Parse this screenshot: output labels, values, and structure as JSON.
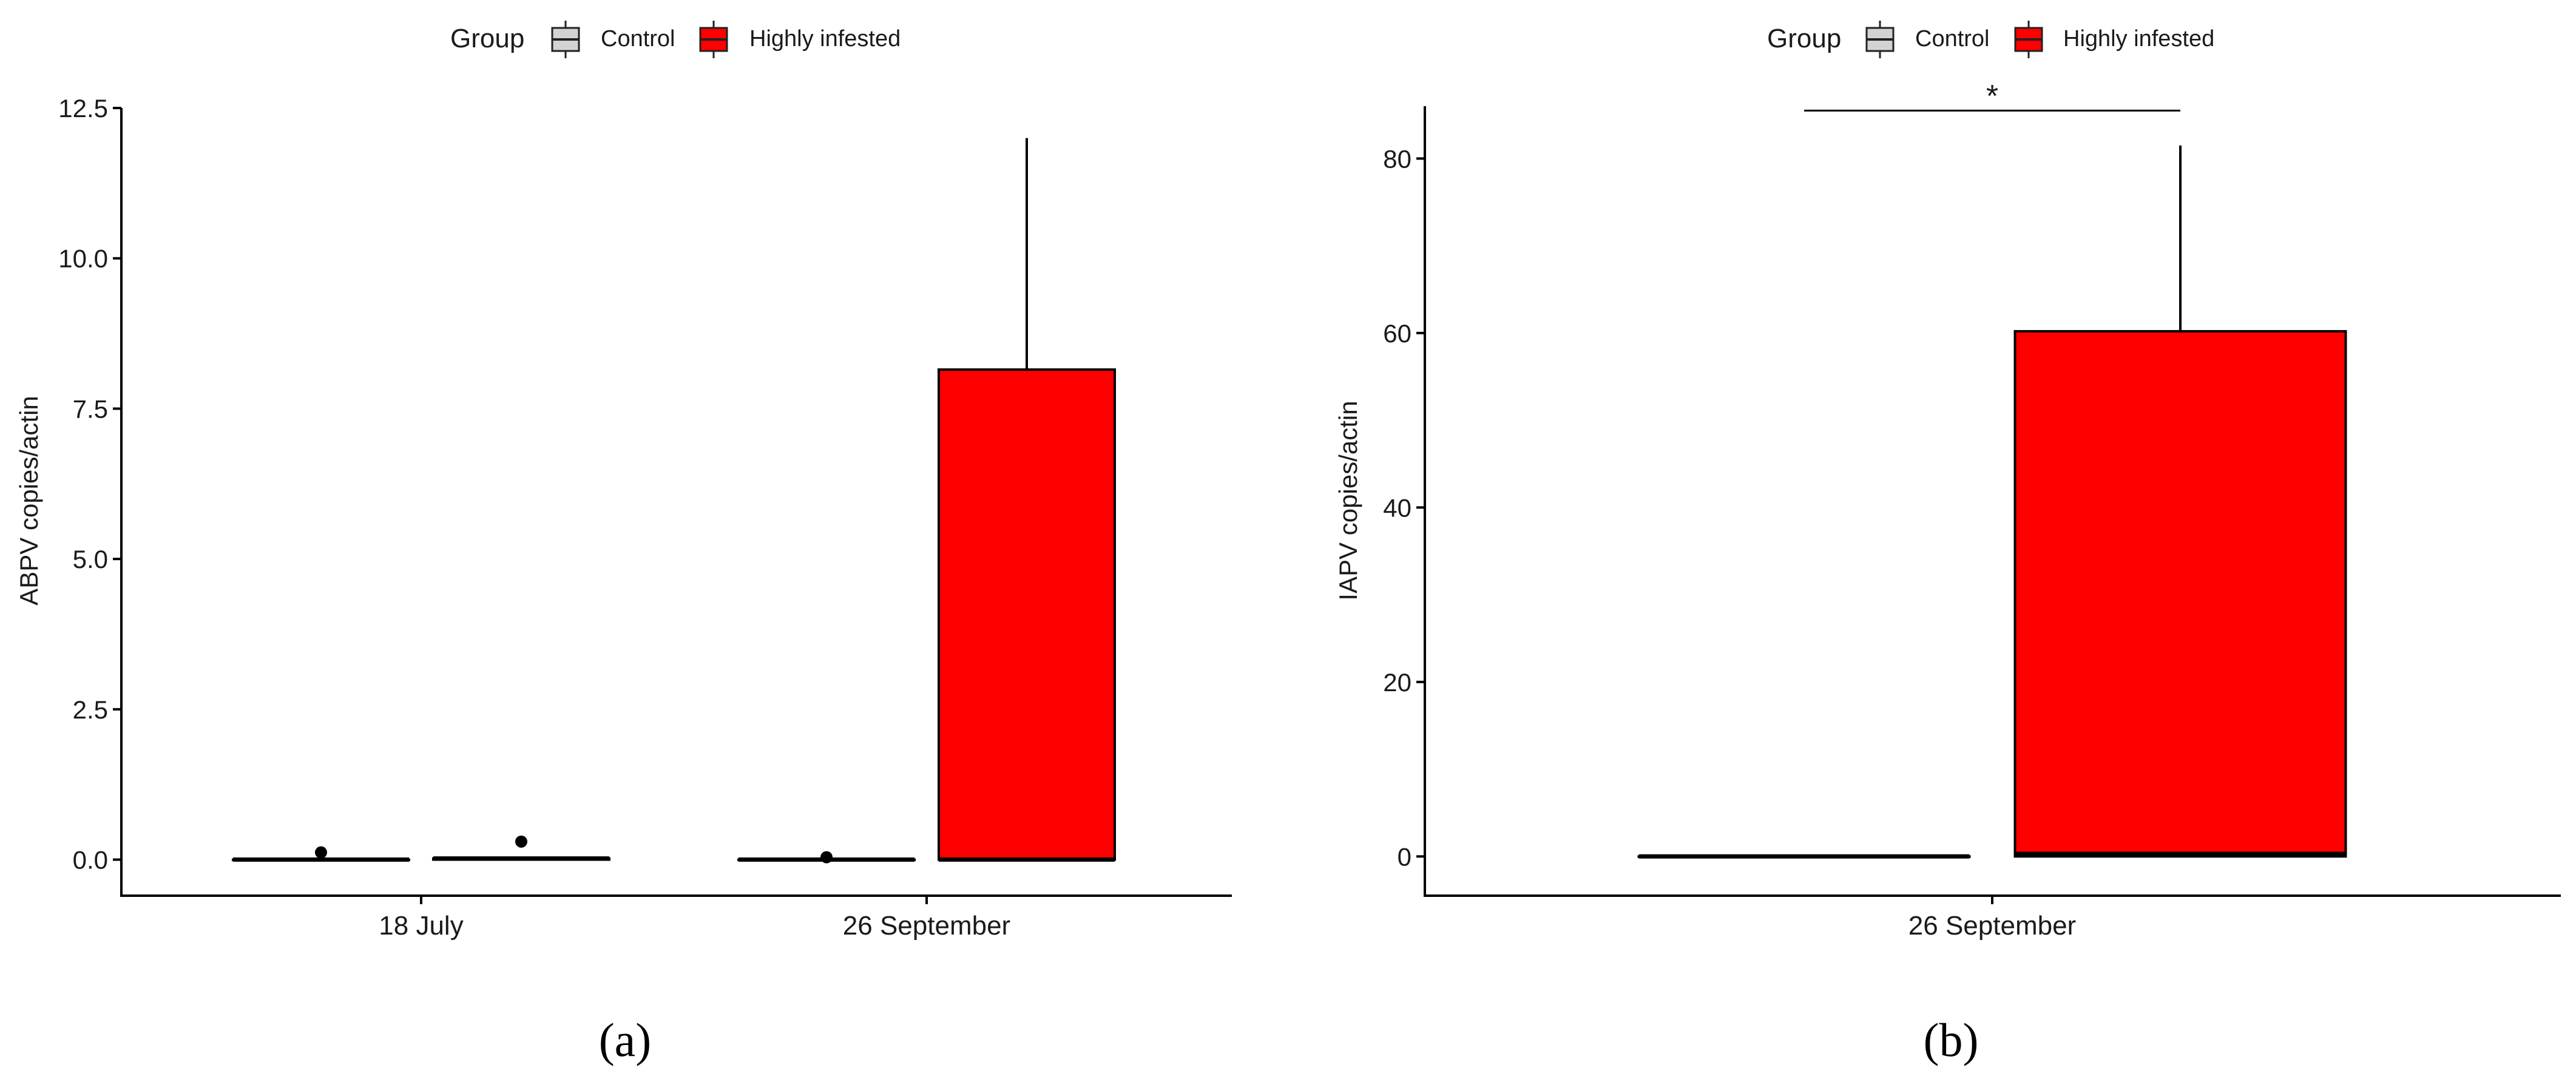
{
  "figure": {
    "panel_labels": [
      "(a)",
      "(b)"
    ]
  },
  "legend": {
    "title": "Group",
    "entries": [
      {
        "name": "Control",
        "color": "#d3d3d3"
      },
      {
        "name": "Highly infested",
        "color": "#ff0000"
      }
    ],
    "placement": "top"
  },
  "chart_data": [
    {
      "type": "box",
      "panel": "(a)",
      "title": "",
      "xlabel": "",
      "ylabel": "ABPV copies/actin",
      "categories": [
        "18 July",
        "26 September"
      ],
      "ylim": [
        -0.6,
        12.5
      ],
      "yticks": [
        0.0,
        2.5,
        5.0,
        7.5,
        10.0,
        12.5
      ],
      "ytick_labels": [
        "0.0",
        "2.5",
        "5.0",
        "7.5",
        "10.0",
        "12.5"
      ],
      "grid": false,
      "series": [
        {
          "name": "Control",
          "color": "#d3d3d3",
          "boxes": [
            {
              "min": 0.0,
              "q1": 0.0,
              "median": 0.0,
              "q3": 0.0,
              "max": 0.0,
              "outliers": [
                0.12
              ]
            },
            {
              "min": 0.0,
              "q1": 0.0,
              "median": 0.0,
              "q3": 0.0,
              "max": 0.0,
              "outliers": [
                0.04
              ]
            }
          ]
        },
        {
          "name": "Highly infested",
          "color": "#ff0000",
          "boxes": [
            {
              "min": 0.0,
              "q1": 0.0,
              "median": 0.02,
              "q3": 0.02,
              "max": 0.02,
              "outliers": [
                0.3
              ]
            },
            {
              "min": 0.0,
              "q1": 0.0,
              "median": 0.0,
              "q3": 8.15,
              "max": 12.0,
              "outliers": []
            }
          ]
        }
      ]
    },
    {
      "type": "box",
      "panel": "(b)",
      "title": "",
      "xlabel": "",
      "ylabel": "IAPV copies/actin",
      "categories": [
        "26 September"
      ],
      "ylim": [
        -4.5,
        86
      ],
      "yticks": [
        0,
        20,
        40,
        60,
        80
      ],
      "ytick_labels": [
        "0",
        "20",
        "40",
        "60",
        "80"
      ],
      "grid": false,
      "series": [
        {
          "name": "Control",
          "color": "#d3d3d3",
          "boxes": [
            {
              "min": 0.0,
              "q1": 0.0,
              "median": 0.0,
              "q3": 0.0,
              "max": 0.0,
              "outliers": []
            }
          ]
        },
        {
          "name": "Highly infested",
          "color": "#ff0000",
          "boxes": [
            {
              "min": 0.0,
              "q1": 0.0,
              "median": 0.3,
              "q3": 60.2,
              "max": 81.5,
              "outliers": []
            }
          ]
        }
      ],
      "annotations": [
        {
          "type": "significance-bracket",
          "label": "*",
          "from": "Control",
          "to": "Highly infested",
          "y": 85.5
        }
      ]
    }
  ]
}
